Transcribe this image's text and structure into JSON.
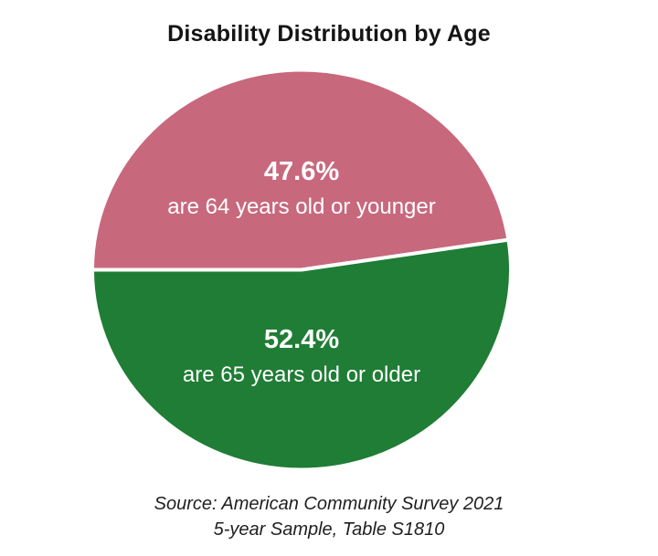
{
  "page": {
    "background_color": "#ffffff"
  },
  "chart_data": {
    "type": "pie",
    "title": "Disability Distribution by Age",
    "categories": [
      "are 64 years old or younger",
      "are 65 years old or older"
    ],
    "values": [
      47.6,
      52.4
    ],
    "slices": [
      {
        "label": "are 64 years old or younger",
        "value": 47.6,
        "value_label": "47.6%",
        "color": "#C8687D",
        "position": "top"
      },
      {
        "label": "are 65 years old or older",
        "value": 52.4,
        "value_label": "52.4%",
        "color": "#1F7D35",
        "position": "bottom"
      }
    ],
    "start_angle_deg": 180,
    "direction": "clockwise",
    "slice_border_color": "#ffffff",
    "slice_border_width": 4,
    "label_text_color": "#ffffff",
    "legend_position": "none",
    "source": {
      "line1": "Source: American Community Survey 2021",
      "line2": "5-year Sample, Table S1810"
    }
  }
}
